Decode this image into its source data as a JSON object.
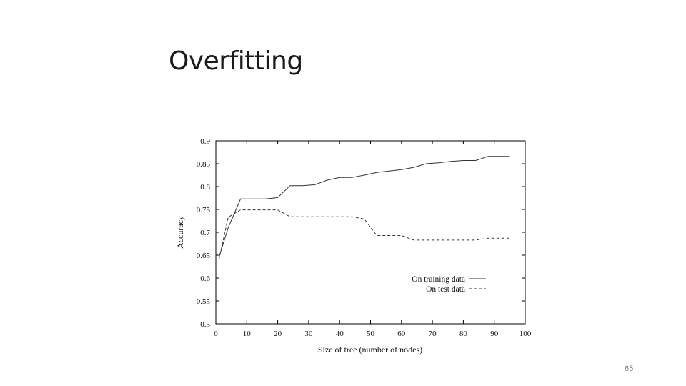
{
  "slide": {
    "title": "Overfitting",
    "number": "65"
  },
  "colors": {
    "text": "#1a1a1a",
    "axis": "#000000",
    "series_line": "#333333",
    "slide_number": "#7f7f7f"
  },
  "chart_data": {
    "type": "line",
    "title": "",
    "xlabel": "Size of tree (number of nodes)",
    "ylabel": "Accuracy",
    "xlim": [
      0,
      100
    ],
    "ylim": [
      0.5,
      0.9
    ],
    "xticks": [
      0,
      10,
      20,
      30,
      40,
      50,
      60,
      70,
      80,
      90,
      100
    ],
    "xtick_labels": [
      "0",
      "10",
      "20",
      "30",
      "40",
      "50",
      "60",
      "70",
      "80",
      "90",
      "100"
    ],
    "yticks": [
      0.5,
      0.55,
      0.6,
      0.65,
      0.7,
      0.75,
      0.8,
      0.85,
      0.9
    ],
    "ytick_labels": [
      "0.5",
      "0.55",
      "0.6",
      "0.65",
      "0.7",
      "0.75",
      "0.8",
      "0.85",
      "0.9"
    ],
    "grid": false,
    "legend_position": "bottom-right",
    "series": [
      {
        "name": "On training data",
        "style": "solid",
        "points": [
          [
            1,
            0.645
          ],
          [
            4,
            0.71
          ],
          [
            8,
            0.773
          ],
          [
            12,
            0.773
          ],
          [
            16,
            0.773
          ],
          [
            20,
            0.776
          ],
          [
            24,
            0.802
          ],
          [
            28,
            0.802
          ],
          [
            32,
            0.804
          ],
          [
            36,
            0.814
          ],
          [
            40,
            0.82
          ],
          [
            44,
            0.82
          ],
          [
            48,
            0.825
          ],
          [
            52,
            0.831
          ],
          [
            56,
            0.834
          ],
          [
            60,
            0.837
          ],
          [
            64,
            0.842
          ],
          [
            68,
            0.85
          ],
          [
            72,
            0.852
          ],
          [
            76,
            0.855
          ],
          [
            80,
            0.857
          ],
          [
            84,
            0.857
          ],
          [
            88,
            0.866
          ],
          [
            92,
            0.866
          ],
          [
            95,
            0.866
          ]
        ]
      },
      {
        "name": "On test data",
        "style": "dashed",
        "points": [
          [
            1,
            0.64
          ],
          [
            4,
            0.733
          ],
          [
            8,
            0.749
          ],
          [
            12,
            0.749
          ],
          [
            16,
            0.749
          ],
          [
            20,
            0.749
          ],
          [
            24,
            0.734
          ],
          [
            28,
            0.734
          ],
          [
            32,
            0.734
          ],
          [
            36,
            0.734
          ],
          [
            40,
            0.734
          ],
          [
            44,
            0.734
          ],
          [
            48,
            0.729
          ],
          [
            52,
            0.693
          ],
          [
            56,
            0.693
          ],
          [
            60,
            0.693
          ],
          [
            64,
            0.683
          ],
          [
            68,
            0.683
          ],
          [
            72,
            0.683
          ],
          [
            76,
            0.683
          ],
          [
            80,
            0.683
          ],
          [
            84,
            0.683
          ],
          [
            88,
            0.687
          ],
          [
            92,
            0.687
          ],
          [
            95,
            0.687
          ]
        ]
      }
    ]
  }
}
